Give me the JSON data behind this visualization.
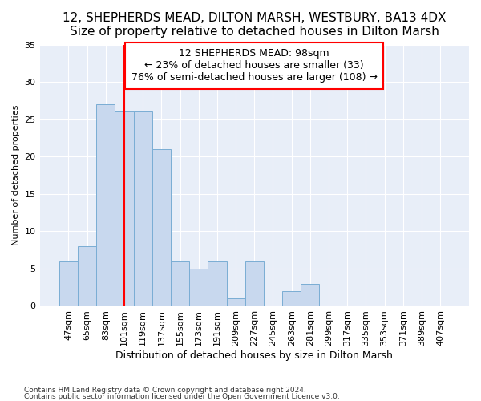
{
  "title1": "12, SHEPHERDS MEAD, DILTON MARSH, WESTBURY, BA13 4DX",
  "title2": "Size of property relative to detached houses in Dilton Marsh",
  "xlabel": "Distribution of detached houses by size in Dilton Marsh",
  "ylabel": "Number of detached properties",
  "footnote1": "Contains HM Land Registry data © Crown copyright and database right 2024.",
  "footnote2": "Contains public sector information licensed under the Open Government Licence v3.0.",
  "bar_labels": [
    "47sqm",
    "65sqm",
    "83sqm",
    "101sqm",
    "119sqm",
    "137sqm",
    "155sqm",
    "173sqm",
    "191sqm",
    "209sqm",
    "227sqm",
    "245sqm",
    "263sqm",
    "281sqm",
    "299sqm",
    "317sqm",
    "335sqm",
    "353sqm",
    "371sqm",
    "389sqm",
    "407sqm"
  ],
  "bar_values": [
    6,
    8,
    27,
    26,
    26,
    21,
    6,
    5,
    6,
    1,
    6,
    0,
    2,
    3,
    0,
    0,
    0,
    0,
    0,
    0,
    0
  ],
  "bar_color": "#c8d8ee",
  "bar_edge_color": "#7aadd4",
  "vline_color": "red",
  "ylim": [
    0,
    35
  ],
  "yticks": [
    0,
    5,
    10,
    15,
    20,
    25,
    30,
    35
  ],
  "annotation_title": "12 SHEPHERDS MEAD: 98sqm",
  "annotation_line1": "← 23% of detached houses are smaller (33)",
  "annotation_line2": "76% of semi-detached houses are larger (108) →",
  "bg_color": "#ffffff",
  "plot_bg_color": "#e8eef8",
  "grid_color": "#ffffff",
  "title1_fontsize": 11,
  "title2_fontsize": 10,
  "xlabel_fontsize": 9,
  "ylabel_fontsize": 8,
  "tick_fontsize": 8,
  "annot_fontsize": 9
}
